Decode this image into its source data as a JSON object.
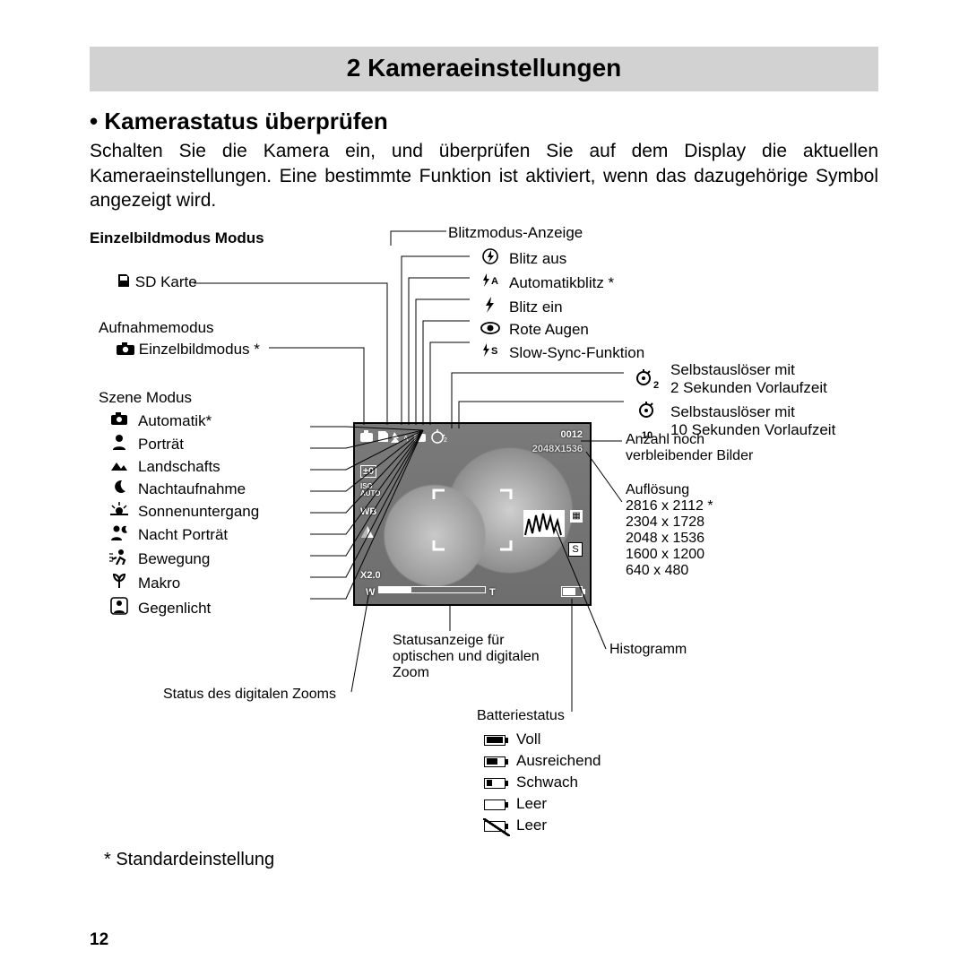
{
  "chapter_title": "2 Kameraeinstellungen",
  "subheading": "• Kamerastatus überprüfen",
  "paragraph": "Schalten Sie die Kamera ein, und überprüfen Sie auf dem Display die aktuellen Kameraeinstellungen. Eine bestimmte Funktion ist aktiviert, wenn das dazugehörige Symbol angezeigt wird.",
  "mode_heading": "Einzelbildmodus Modus",
  "left_headers": {
    "sd": "SD Karte",
    "aufnahme_h": "Aufnahmemodus",
    "aufnahme_item": "Einzelbildmodus *",
    "szene_h": "Szene Modus"
  },
  "szene_items": [
    {
      "icon": "camera-auto",
      "label": "Automatik*"
    },
    {
      "icon": "portrait",
      "label": "Porträt"
    },
    {
      "icon": "landscape",
      "label": "Landschafts"
    },
    {
      "icon": "moon",
      "label": "Nachtaufnahme"
    },
    {
      "icon": "sunset",
      "label": "Sonnenuntergang"
    },
    {
      "icon": "night-portrait",
      "label": "Nacht Porträt"
    },
    {
      "icon": "motion",
      "label": "Bewegung"
    },
    {
      "icon": "macro",
      "label": "Makro"
    },
    {
      "icon": "backlight",
      "label": "Gegenlicht"
    }
  ],
  "zoom_status_label": "Status des digitalen Zooms",
  "flash_header": "Blitzmodus-Anzeige",
  "flash_items": [
    {
      "icon": "flash-off",
      "label": "Blitz aus"
    },
    {
      "icon": "flash-auto",
      "label": "Automatikblitz *"
    },
    {
      "icon": "flash-on",
      "label": "Blitz ein"
    },
    {
      "icon": "red-eye",
      "label": "Rote Augen"
    },
    {
      "icon": "flash-slow",
      "label": "Slow-Sync-Funktion"
    }
  ],
  "selftimer": [
    {
      "sub": "2",
      "l1": "Selbstauslöser mit",
      "l2": "2 Sekunden Vorlaufzeit"
    },
    {
      "sub": "10",
      "l1": "Selbstauslöser mit",
      "l2": "10 Sekunden Vorlaufzeit"
    }
  ],
  "remaining": {
    "l1": "Anzahl noch",
    "l2": "verbleibender Bilder"
  },
  "resolution_header": "Auflösung",
  "resolutions": [
    "2816 x 2112 *",
    "2304 x 1728",
    "2048 x 1536",
    "1600 x 1200",
    "640 x 480"
  ],
  "histogram_label": "Histogramm",
  "optical_zoom": {
    "l1": "Statusanzeige für",
    "l2": "optischen und digitalen",
    "l3": "Zoom"
  },
  "battery_header": "Batteriestatus",
  "battery_items": [
    {
      "fill": 18,
      "crossed": false,
      "label": "Voll"
    },
    {
      "fill": 12,
      "crossed": false,
      "label": "Ausreichend"
    },
    {
      "fill": 6,
      "crossed": false,
      "label": "Schwach"
    },
    {
      "fill": 0,
      "crossed": false,
      "label": "Leer"
    },
    {
      "fill": 0,
      "crossed": true,
      "label": "Leer"
    }
  ],
  "default_note": "* Standardeinstellung",
  "screen": {
    "count": "0012",
    "res": "2048X1536",
    "ev": "±0",
    "iso": "ISO",
    "iso2": "AUTO",
    "wb": "WB",
    "zoom": "X2.0",
    "w": "W",
    "t": "T",
    "s": "S"
  },
  "page_number": "12",
  "colors": {
    "text": "#000",
    "bar": "#d2d2d2",
    "screen": "#8a8a8a",
    "white": "#fff"
  }
}
